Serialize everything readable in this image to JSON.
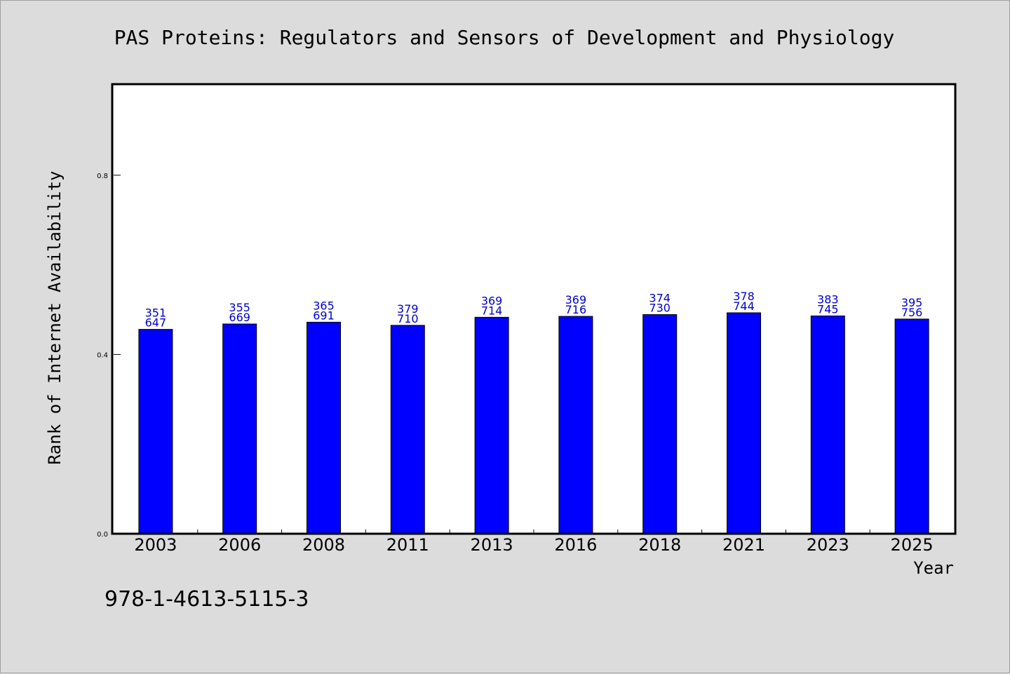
{
  "colors": {
    "background": "#dcdcdc",
    "plot_background": "#ffffff",
    "bar_fill": "#0000ff",
    "label_color": "#0000cc"
  },
  "isbn": "978-1-4613-5115-3",
  "chart_data": {
    "type": "bar",
    "title": "PAS Proteins: Regulators and Sensors of Development and Physiology",
    "xlabel": "Year",
    "ylabel": "Rank of Internet Availability",
    "ylim": [
      0.0,
      1.0
    ],
    "yticks": [
      0.0,
      0.4,
      0.8
    ],
    "ytick_labels": [
      "0.0",
      "0.4",
      "0.8"
    ],
    "grid": false,
    "categories": [
      "2003",
      "2006",
      "2008",
      "2011",
      "2013",
      "2016",
      "2018",
      "2021",
      "2023",
      "2025"
    ],
    "values": [
      0.456,
      0.468,
      0.472,
      0.465,
      0.483,
      0.485,
      0.489,
      0.493,
      0.486,
      0.479
    ],
    "annotations_top": [
      "351",
      "355",
      "365",
      "379",
      "369",
      "369",
      "374",
      "378",
      "383",
      "395"
    ],
    "annotations_bottom": [
      "647",
      "669",
      "691",
      "710",
      "714",
      "716",
      "730",
      "744",
      "745",
      "756"
    ]
  }
}
